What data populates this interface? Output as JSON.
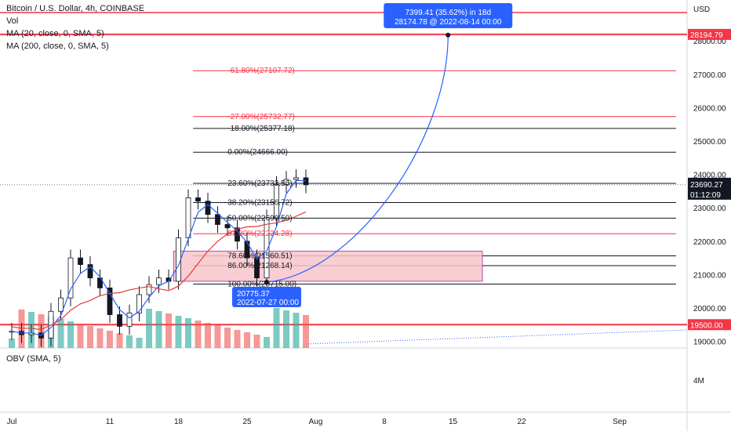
{
  "chart_data": {
    "type": "candlestick",
    "title": "Bitcoin / U.S. Dollar, 4h, COINBASE",
    "legend": [
      "Bitcoin / U.S. Dollar, 4h, COINBASE",
      "Vol",
      "MA (20, close, 0, SMA, 5)",
      "MA (200, close, 0, SMA, 5)"
    ],
    "obv_label": "OBV (SMA, 5)",
    "currency": "USD",
    "x_tick_labels": [
      "Jul",
      "11",
      "18",
      "25",
      "Aug",
      "8",
      "15",
      "22",
      "Sep"
    ],
    "x_tick_days": [
      1,
      11,
      18,
      25,
      32,
      39,
      46,
      53,
      63
    ],
    "y_ticks": [
      19000,
      20000,
      21000,
      22000,
      23000,
      24000,
      25000,
      26000,
      27000,
      28000
    ],
    "y_tick_labels": [
      "19000.00",
      "20000.00",
      "21000.00",
      "22000.00",
      "23000.00",
      "24000.00",
      "25000.00",
      "26000.00",
      "27000.00",
      "28000.00"
    ],
    "obv_tick_label": "4M",
    "price_series": {
      "day": [
        1,
        2,
        3,
        4,
        5,
        6,
        7,
        8,
        9,
        10,
        11,
        12,
        13,
        14,
        15,
        16,
        17,
        18,
        19,
        20,
        21,
        22,
        23,
        24,
        25,
        26,
        27,
        28,
        29,
        30,
        31
      ],
      "close": [
        19300,
        19200,
        19250,
        19100,
        19900,
        20300,
        21500,
        21300,
        20900,
        20600,
        19800,
        19450,
        19850,
        20400,
        20700,
        20900,
        20800,
        22100,
        23300,
        23200,
        22800,
        22500,
        22400,
        22000,
        21500,
        20900,
        22700,
        23700,
        23850,
        23900,
        23690
      ]
    },
    "last_price": "23690.27",
    "countdown": "01:12:09",
    "horizontal_levels": [
      {
        "value": 28194.79,
        "label": "28194.79"
      },
      {
        "value": 19500.0,
        "label": "19500.00"
      }
    ],
    "fib_levels": [
      {
        "value": 27107.72,
        "label": "-61.80%(27107.72)",
        "color": "#f23645"
      },
      {
        "value": 25732.77,
        "label": "-27.00%(25732.77)",
        "color": "#f23645"
      },
      {
        "value": 25377.18,
        "label": "-18.00%(25377.18)",
        "color": "#131722"
      },
      {
        "value": 24666.0,
        "label": "0.00%(24666.00)",
        "color": "#131722"
      },
      {
        "value": 23733.56,
        "label": "23.60%(23733.56)",
        "color": "#131722"
      },
      {
        "value": 23156.72,
        "label": "38.20%(23156.72)",
        "color": "#131722"
      },
      {
        "value": 22690.5,
        "label": "50.00%(22690.50)",
        "color": "#131722"
      },
      {
        "value": 22224.28,
        "label": "61.80%(22224.28)",
        "color": "#f23645"
      },
      {
        "value": 21560.51,
        "label": "78.60%(21560.51)",
        "color": "#131722"
      },
      {
        "value": 21268.14,
        "label": "86.00%(21268.14)",
        "color": "#131722"
      },
      {
        "value": 20715.0,
        "label": "100.00%(20715.00)",
        "color": "#131722"
      }
    ],
    "projection": {
      "from": {
        "day": 27,
        "value": 20775.37
      },
      "to": {
        "day": 45.5,
        "value": 28174.78
      },
      "gain_label": "7399.41 (35.62%) in 18d",
      "target_label": "28174.78 @ 2022-08-14  00:00",
      "start_label": "20775.37",
      "start_date_label": "2022-07-27 00:00"
    },
    "zone": {
      "from_day": 17.5,
      "to_day": 49,
      "low": 20800,
      "high": 21700
    },
    "colors": {
      "up": "#26a69a",
      "down": "#ef5350",
      "candle": "#131722",
      "ma20": "#2962ff",
      "ma200": "#e53935",
      "level": "#f23645",
      "projection": "#2962ff",
      "zone_fill": "#f8c6cb",
      "zone_stroke": "#9c27b0",
      "price_tag": "#131722"
    }
  }
}
